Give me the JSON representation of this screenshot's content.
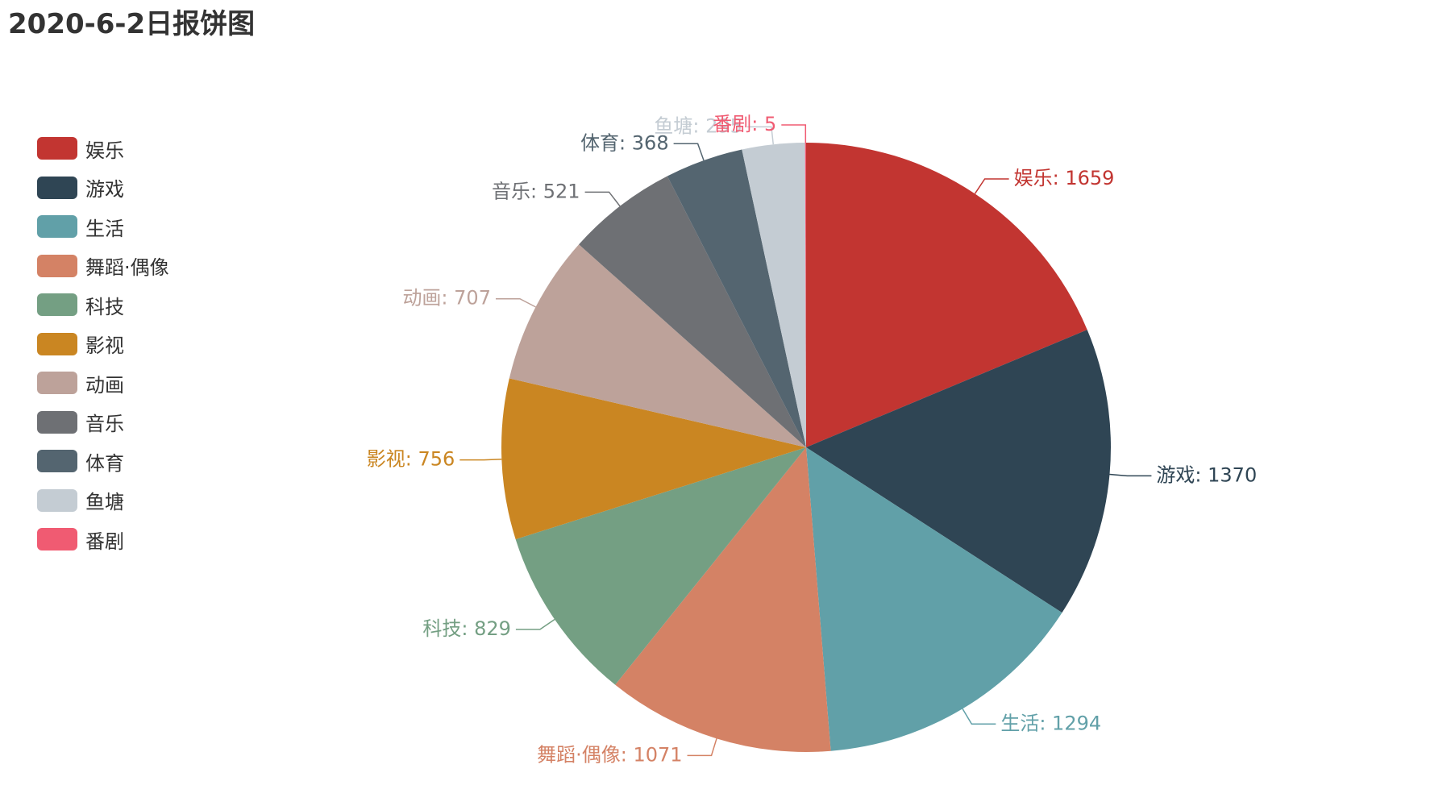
{
  "chart_data": {
    "type": "pie",
    "title": "2020-6-2日报饼图",
    "legend_position": "left",
    "label_separator": ": ",
    "slices": [
      {
        "name": "娱乐",
        "value": 1659,
        "color": "#c23531"
      },
      {
        "name": "游戏",
        "value": 1370,
        "color": "#2f4554"
      },
      {
        "name": "生活",
        "value": 1294,
        "color": "#61a0a8"
      },
      {
        "name": "舞蹈·偶像",
        "value": 1071,
        "color": "#d48265"
      },
      {
        "name": "科技",
        "value": 829,
        "color": "#749f83"
      },
      {
        "name": "影视",
        "value": 756,
        "color": "#ca8622"
      },
      {
        "name": "动画",
        "value": 707,
        "color": "#bda29a"
      },
      {
        "name": "音乐",
        "value": 521,
        "color": "#6e7074"
      },
      {
        "name": "体育",
        "value": 368,
        "color": "#546570"
      },
      {
        "name": "鱼塘",
        "value": 295,
        "color": "#c4ccd3"
      },
      {
        "name": "番剧",
        "value": 5,
        "color": "#f05b72"
      }
    ]
  }
}
